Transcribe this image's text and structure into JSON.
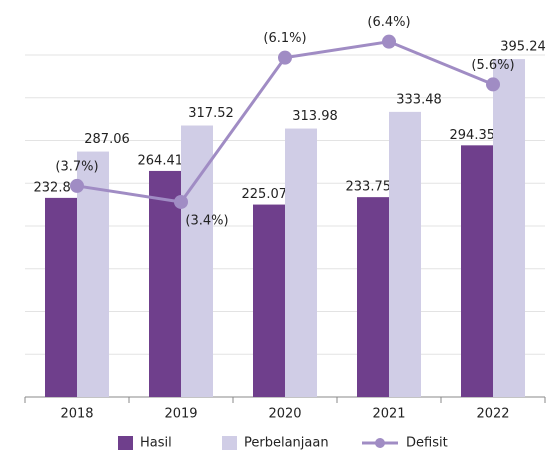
{
  "chart_data": {
    "type": "bar",
    "categories": [
      "2018",
      "2019",
      "2020",
      "2021",
      "2022"
    ],
    "series": [
      {
        "name": "Hasil",
        "color": "#6f3f8c",
        "values": [
          232.88,
          264.41,
          225.07,
          233.75,
          294.35
        ]
      },
      {
        "name": "Perbelanjaan",
        "color": "#d0cde6",
        "values": [
          287.06,
          317.52,
          313.98,
          333.48,
          395.24
        ]
      },
      {
        "name": "Defisit",
        "type": "line",
        "axis": "y2",
        "color": "#a08cc4",
        "values": [
          3.7,
          3.4,
          6.1,
          6.4,
          5.6
        ],
        "value_labels": [
          "(3.7%)",
          "(3.4%)",
          "(6.1%)",
          "(6.4%)",
          "(5.6%)"
        ]
      }
    ],
    "ylim": [
      0,
      400
    ],
    "yticks": [
      0,
      50,
      100,
      150,
      200,
      250,
      300,
      350,
      400
    ],
    "y2lim": [
      -0.25,
      6.15
    ],
    "grid": true,
    "legend": "bottom"
  }
}
